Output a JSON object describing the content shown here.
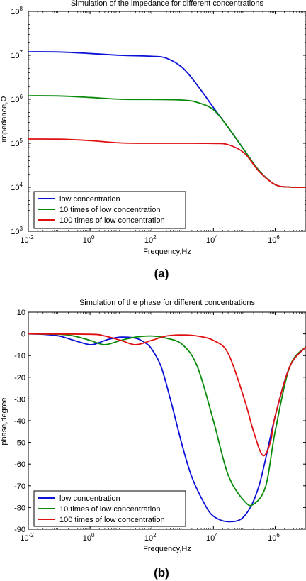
{
  "chart_data": [
    {
      "type": "line",
      "title": "Simulation of the impedance for different concentrations",
      "xlabel": "Frequency,Hz",
      "ylabel": "impedance,Ω",
      "xscale": "log",
      "yscale": "log",
      "xlim": [
        0.01,
        10000000
      ],
      "ylim": [
        1000,
        100000000
      ],
      "xticks": [
        {
          "value": 0.01,
          "base": "10",
          "exp": "-2"
        },
        {
          "value": 1,
          "base": "10",
          "exp": "0"
        },
        {
          "value": 100,
          "base": "10",
          "exp": "2"
        },
        {
          "value": 10000,
          "base": "10",
          "exp": "4"
        },
        {
          "value": 1000000,
          "base": "10",
          "exp": "6"
        }
      ],
      "yticks": [
        {
          "value": 1000,
          "base": "10",
          "exp": "3"
        },
        {
          "value": 10000,
          "base": "10",
          "exp": "4"
        },
        {
          "value": 100000,
          "base": "10",
          "exp": "5"
        },
        {
          "value": 1000000,
          "base": "10",
          "exp": "6"
        },
        {
          "value": 10000000,
          "base": "10",
          "exp": "7"
        },
        {
          "value": 100000000,
          "base": "10",
          "exp": "8"
        }
      ],
      "grid": false,
      "legend_position": "bottom-left",
      "panel_label": "(a)",
      "series": [
        {
          "name": "low concentration",
          "color": "#0a10d6",
          "x": [
            0.01,
            0.1,
            1,
            10,
            100,
            300,
            1000,
            3000,
            10000,
            30000,
            100000,
            300000,
            1000000,
            3000000,
            10000000
          ],
          "y": [
            12000000,
            11900000,
            11000000,
            10000000,
            9500000,
            8600000,
            5200000,
            2100000,
            650000,
            230000,
            70000,
            24000,
            11500,
            10100,
            10000
          ]
        },
        {
          "name": "10 times of low concentration",
          "color": "#0a8a0a",
          "x": [
            0.01,
            0.1,
            1,
            10,
            100,
            1000,
            3000,
            10000,
            30000,
            100000,
            300000,
            1000000,
            3000000,
            10000000
          ],
          "y": [
            1200000,
            1190000,
            1100000,
            1000000,
            990000,
            960000,
            850000,
            580000,
            230000,
            70000,
            24000,
            11500,
            10100,
            10000
          ]
        },
        {
          "name": "100 times of low concentration",
          "color": "#e01010",
          "x": [
            0.01,
            0.1,
            1,
            10,
            100,
            1000,
            10000,
            30000,
            100000,
            300000,
            1000000,
            3000000,
            10000000
          ],
          "y": [
            125000,
            124000,
            115000,
            102000,
            100000,
            100000,
            99000,
            93000,
            60000,
            23000,
            11500,
            10100,
            10000
          ]
        }
      ]
    },
    {
      "type": "line",
      "title": "Simulation of the phase for different concentrations",
      "xlabel": "Frequency,Hz",
      "ylabel": "phase,degree",
      "xscale": "log",
      "yscale": "linear",
      "xlim": [
        0.01,
        10000000
      ],
      "ylim": [
        -90,
        10
      ],
      "xticks": [
        {
          "value": 0.01,
          "base": "10",
          "exp": "-2"
        },
        {
          "value": 1,
          "base": "10",
          "exp": "0"
        },
        {
          "value": 100,
          "base": "10",
          "exp": "2"
        },
        {
          "value": 10000,
          "base": "10",
          "exp": "4"
        },
        {
          "value": 1000000,
          "base": "10",
          "exp": "6"
        }
      ],
      "yticks": [
        {
          "value": 10,
          "label": "10"
        },
        {
          "value": 0,
          "label": "0"
        },
        {
          "value": -10,
          "label": "-10"
        },
        {
          "value": -20,
          "label": "-20"
        },
        {
          "value": -30,
          "label": "-30"
        },
        {
          "value": -40,
          "label": "-40"
        },
        {
          "value": -50,
          "label": "-50"
        },
        {
          "value": -60,
          "label": "-60"
        },
        {
          "value": -70,
          "label": "-70"
        },
        {
          "value": -80,
          "label": "-80"
        },
        {
          "value": -90,
          "label": "-90"
        }
      ],
      "grid": false,
      "legend_position": "bottom-left",
      "panel_label": "(b)",
      "series": [
        {
          "name": "low concentration",
          "color": "#0a10d6",
          "x": [
            0.01,
            0.03,
            0.1,
            0.3,
            1,
            2,
            4,
            10,
            30,
            60,
            100,
            200,
            400,
            1000,
            2000,
            5000,
            10000,
            30000,
            100000,
            300000,
            1000000,
            3000000,
            10000000
          ],
          "y": [
            0,
            -0.2,
            -1,
            -3,
            -5,
            -4,
            -2.5,
            -1.5,
            -2,
            -4,
            -7,
            -15,
            -30,
            -52,
            -66,
            -78,
            -84,
            -86.5,
            -84,
            -70,
            -38,
            -15,
            -6
          ]
        },
        {
          "name": "10 times of low concentration",
          "color": "#0a8a0a",
          "x": [
            0.01,
            0.1,
            0.3,
            1,
            3,
            10,
            30,
            100,
            300,
            1000,
            3000,
            10000,
            30000,
            100000,
            200000,
            500000,
            1000000,
            3000000,
            10000000
          ],
          "y": [
            0,
            -0.2,
            -1,
            -3,
            -5,
            -3,
            -1.5,
            -1,
            -2,
            -5,
            -15,
            -40,
            -65,
            -77,
            -78.5,
            -70,
            -45,
            -15,
            -6
          ]
        },
        {
          "name": "100 times of low concentration",
          "color": "#e01010",
          "x": [
            0.01,
            1,
            3,
            10,
            30,
            100,
            300,
            1000,
            3000,
            10000,
            30000,
            100000,
            200000,
            400000,
            700000,
            1000000,
            3000000,
            10000000
          ],
          "y": [
            0,
            -0.2,
            -1,
            -3,
            -5,
            -3,
            -1,
            -0.5,
            -1,
            -3,
            -9,
            -30,
            -45,
            -56,
            -50,
            -38,
            -15,
            -6
          ]
        }
      ]
    }
  ]
}
